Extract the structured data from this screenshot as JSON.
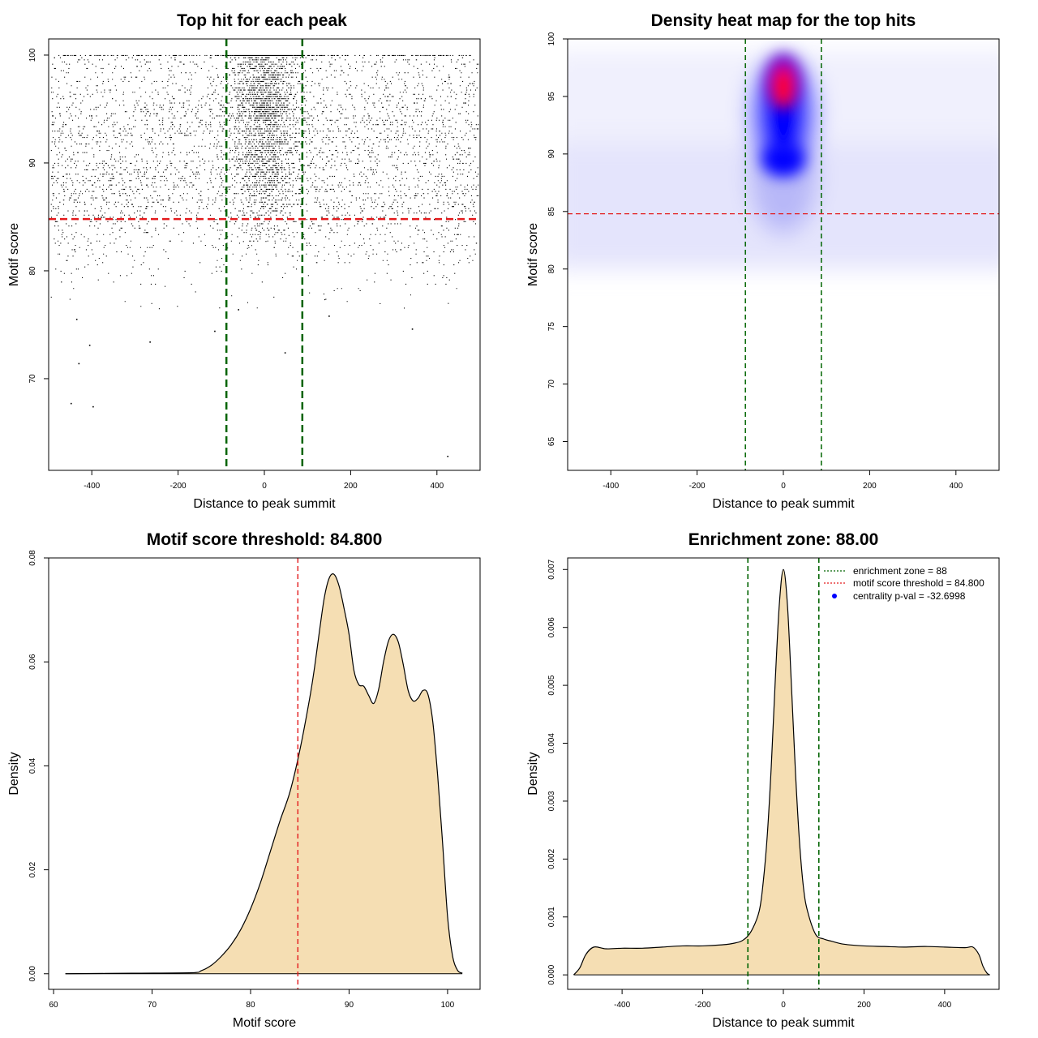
{
  "chart_data": [
    {
      "id": "scatter",
      "type": "scatter",
      "title": "Top hit for each peak",
      "xlabel": "Distance to peak summit",
      "ylabel": "Motif score",
      "xlim": [
        -500,
        500
      ],
      "ylim": [
        61.5,
        101.5
      ],
      "xticks": [
        "-400",
        "-200",
        "0",
        "200",
        "400"
      ],
      "yticks": [
        "70",
        "80",
        "90",
        "100"
      ],
      "vlines": [
        -88,
        88
      ],
      "hline": 84.8,
      "point_color": "#000000",
      "vline_color": "#006400",
      "hline_color": "#e31a1c",
      "outliers": [
        {
          "x": -448,
          "y": 67.7
        },
        {
          "x": -397,
          "y": 67.4
        },
        {
          "x": -430,
          "y": 71.4
        },
        {
          "x": -405,
          "y": 73.1
        },
        {
          "x": -265,
          "y": 73.4
        },
        {
          "x": -115,
          "y": 74.4
        },
        {
          "x": 48,
          "y": 72.4
        },
        {
          "x": 343,
          "y": 74.6
        },
        {
          "x": 425,
          "y": 62.8
        },
        {
          "x": -435,
          "y": 75.5
        },
        {
          "x": 150,
          "y": 75.8
        },
        {
          "x": -60,
          "y": 76.4
        }
      ]
    },
    {
      "id": "heatmap",
      "type": "heatmap",
      "title": "Density heat map for the top hits",
      "xlabel": "Distance to peak summit",
      "ylabel": "Motif score",
      "xlim": [
        -500,
        500
      ],
      "ylim": [
        62.5,
        100
      ],
      "xticks": [
        "-400",
        "-200",
        "0",
        "200",
        "400"
      ],
      "yticks": [
        "65",
        "70",
        "75",
        "80",
        "85",
        "90",
        "95",
        "100"
      ],
      "vlines": [
        -88,
        88
      ],
      "hline": 84.8,
      "colors": {
        "low": "#ffffff",
        "mid": "#0000ff",
        "high": "#ff0000"
      }
    },
    {
      "id": "scoredens",
      "type": "area",
      "title": "Motif score threshold: 84.800",
      "xlabel": "Motif score",
      "ylabel": "Density",
      "xlim": [
        59.5,
        103.3
      ],
      "ylim": [
        -0.003,
        0.08
      ],
      "xticks": [
        "60",
        "70",
        "80",
        "90",
        "100"
      ],
      "yticks": [
        "0.00",
        "0.02",
        "0.04",
        "0.06",
        "0.08"
      ],
      "vline": 84.8,
      "fill": "#f5deb3",
      "x": [
        61.2,
        68,
        74,
        75,
        76,
        77,
        78,
        79,
        80,
        81,
        82,
        83,
        84,
        85,
        86,
        86.5,
        87,
        87.5,
        88,
        88.5,
        89,
        89.5,
        90,
        90.5,
        91,
        91.5,
        92,
        92.5,
        93,
        93.5,
        94,
        94.5,
        95,
        95.5,
        96,
        96.5,
        97,
        97.5,
        98,
        98.5,
        99,
        99.5,
        100,
        100.5,
        101,
        101.5
      ],
      "y": [
        0.0,
        0.0001,
        0.0002,
        0.0006,
        0.0016,
        0.0033,
        0.0055,
        0.0085,
        0.0125,
        0.0175,
        0.0235,
        0.0295,
        0.035,
        0.043,
        0.053,
        0.059,
        0.066,
        0.0725,
        0.0762,
        0.0768,
        0.0745,
        0.0702,
        0.0653,
        0.0583,
        0.0556,
        0.0553,
        0.0535,
        0.052,
        0.0547,
        0.06,
        0.064,
        0.0653,
        0.0638,
        0.0595,
        0.0545,
        0.0525,
        0.053,
        0.0545,
        0.0538,
        0.0485,
        0.038,
        0.025,
        0.011,
        0.0035,
        0.0007,
        0.0001
      ]
    },
    {
      "id": "distdens",
      "type": "area",
      "title": "Enrichment zone: 88.00",
      "xlabel": "Distance to peak summit",
      "ylabel": "Density",
      "xlim": [
        -535,
        535
      ],
      "ylim": [
        -0.00025,
        0.0072
      ],
      "xticks": [
        "-400",
        "-200",
        "0",
        "200",
        "400"
      ],
      "yticks": [
        "0.000",
        "0.001",
        "0.002",
        "0.003",
        "0.004",
        "0.005",
        "0.006",
        "0.007"
      ],
      "vlines": [
        -88,
        88
      ],
      "fill": "#f5deb3",
      "x": [
        -520,
        -505,
        -490,
        -470,
        -440,
        -400,
        -350,
        -300,
        -250,
        -200,
        -150,
        -120,
        -100,
        -80,
        -60,
        -50,
        -40,
        -30,
        -20,
        -10,
        0,
        10,
        20,
        30,
        40,
        50,
        60,
        80,
        100,
        120,
        150,
        200,
        250,
        300,
        350,
        400,
        450,
        470,
        485,
        495,
        505,
        512
      ],
      "y": [
        0.0,
        0.00012,
        0.00035,
        0.00048,
        0.00045,
        0.00046,
        0.00046,
        0.00048,
        0.0005,
        0.0005,
        0.00052,
        0.00055,
        0.0006,
        0.00075,
        0.0011,
        0.0016,
        0.0024,
        0.0036,
        0.0051,
        0.0064,
        0.007,
        0.0064,
        0.005,
        0.0035,
        0.0023,
        0.0015,
        0.0011,
        0.0007,
        0.00062,
        0.00058,
        0.00053,
        0.0005,
        0.00049,
        0.00048,
        0.00049,
        0.00048,
        0.00047,
        0.00048,
        0.00035,
        0.00015,
        3e-05,
        0.0
      ]
    }
  ],
  "legend": {
    "entries": [
      {
        "label": "enrichment zone = 88",
        "color": "#006400",
        "symbol": "dotted-line"
      },
      {
        "label": "motif score threshold = 84.800",
        "color": "#e31a1c",
        "symbol": "dotted-line"
      },
      {
        "label": "centrality p-val = -32.6998",
        "color": "#0000ff",
        "symbol": "dot"
      }
    ]
  }
}
